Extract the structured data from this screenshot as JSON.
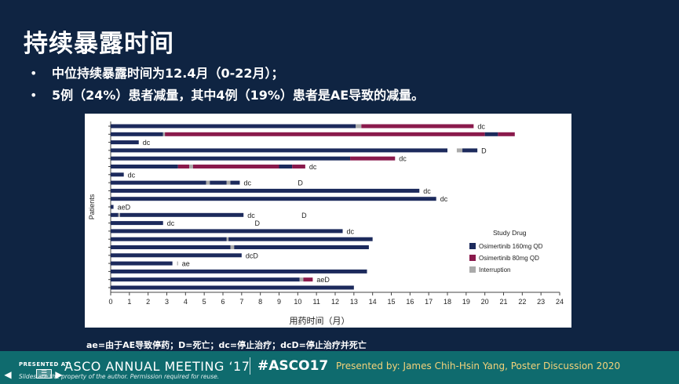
{
  "slide": {
    "title": "持续暴露时间",
    "bullets": [
      "中位持续暴露时间为12.4月（0-22月）；",
      "5例（24%）患者减量，其中4例（19%）患者是AE导致的减量。"
    ],
    "bullet_marker": "•",
    "footnote": "ae=由于AE导致停药；D=死亡；dc=停止治疗；dcD=停止治疗并死亡"
  },
  "colors": {
    "background": "#0f2442",
    "footer": "#0f6b6e",
    "osimertinib_160": "#1c2a5c",
    "osimertinib_80": "#8a1a4c",
    "interruption": "#aaaaaa",
    "presenter_text": "#f3d27a"
  },
  "chart_data": {
    "type": "bar",
    "orientation": "horizontal",
    "xlabel": "用药时间（月）",
    "ylabel": "Patients",
    "xlim": [
      0,
      24
    ],
    "xticks": [
      0,
      1,
      2,
      3,
      4,
      5,
      6,
      7,
      8,
      9,
      10,
      11,
      12,
      13,
      14,
      15,
      16,
      17,
      18,
      19,
      20,
      21,
      22,
      23,
      24
    ],
    "legend": {
      "title": "Study Drug",
      "placement": "right",
      "entries": [
        {
          "label": "Osimertinib 160mg QD",
          "color_key": "osimertinib_160"
        },
        {
          "label": "Osimertinib 80mg QD",
          "color_key": "osimertinib_80"
        },
        {
          "label": "Interruption",
          "color_key": "interruption"
        }
      ]
    },
    "patients": [
      {
        "segments": [
          {
            "start": 0,
            "end": 13.1,
            "drug": "160"
          },
          {
            "start": 13.1,
            "end": 13.4,
            "drug": "int"
          },
          {
            "start": 13.4,
            "end": 19.4,
            "drug": "80"
          }
        ],
        "label": "dc",
        "extra": []
      },
      {
        "segments": [
          {
            "start": 0,
            "end": 2.8,
            "drug": "160"
          },
          {
            "start": 2.8,
            "end": 2.9,
            "drug": "int"
          },
          {
            "start": 2.9,
            "end": 20.0,
            "drug": "80"
          },
          {
            "start": 20.0,
            "end": 20.7,
            "drug": "160"
          },
          {
            "start": 20.7,
            "end": 21.6,
            "drug": "80"
          }
        ],
        "label": "",
        "extra": []
      },
      {
        "segments": [
          {
            "start": 0,
            "end": 1.5,
            "drug": "160"
          }
        ],
        "label": "dc",
        "extra": []
      },
      {
        "segments": [
          {
            "start": 0,
            "end": 18.0,
            "drug": "160"
          },
          {
            "start": 18.5,
            "end": 18.8,
            "drug": "int"
          },
          {
            "start": 18.8,
            "end": 19.6,
            "drug": "160"
          }
        ],
        "label": "D",
        "extra": []
      },
      {
        "segments": [
          {
            "start": 0,
            "end": 12.8,
            "drug": "160"
          },
          {
            "start": 12.8,
            "end": 15.2,
            "drug": "80"
          }
        ],
        "label": "dc",
        "extra": []
      },
      {
        "segments": [
          {
            "start": 0,
            "end": 3.6,
            "drug": "160"
          },
          {
            "start": 3.6,
            "end": 4.2,
            "drug": "80"
          },
          {
            "start": 4.2,
            "end": 4.4,
            "drug": "int"
          },
          {
            "start": 4.4,
            "end": 9.0,
            "drug": "80"
          },
          {
            "start": 9.0,
            "end": 9.7,
            "drug": "160"
          },
          {
            "start": 9.7,
            "end": 10.4,
            "drug": "80"
          }
        ],
        "label": "dc",
        "extra": []
      },
      {
        "segments": [
          {
            "start": 0,
            "end": 0.7,
            "drug": "160"
          }
        ],
        "label": "dc",
        "extra": []
      },
      {
        "segments": [
          {
            "start": 0,
            "end": 5.1,
            "drug": "160"
          },
          {
            "start": 5.1,
            "end": 5.3,
            "drug": "int"
          },
          {
            "start": 5.3,
            "end": 6.2,
            "drug": "160"
          },
          {
            "start": 6.2,
            "end": 6.4,
            "drug": "int"
          },
          {
            "start": 6.4,
            "end": 6.9,
            "drug": "160"
          }
        ],
        "label": "dc",
        "extra": [
          {
            "x": 10.0,
            "text": "D"
          }
        ]
      },
      {
        "segments": [
          {
            "start": 0,
            "end": 16.5,
            "drug": "160"
          }
        ],
        "label": "dc",
        "extra": []
      },
      {
        "segments": [
          {
            "start": 0,
            "end": 17.4,
            "drug": "160"
          }
        ],
        "label": "dc",
        "extra": []
      },
      {
        "segments": [
          {
            "start": 0,
            "end": 0.15,
            "drug": "160"
          }
        ],
        "label": "aeD",
        "extra": []
      },
      {
        "segments": [
          {
            "start": 0,
            "end": 0.4,
            "drug": "160"
          },
          {
            "start": 0.4,
            "end": 0.5,
            "drug": "int"
          },
          {
            "start": 0.5,
            "end": 7.1,
            "drug": "160"
          }
        ],
        "label": "dc",
        "extra": [
          {
            "x": 10.2,
            "text": "D"
          }
        ]
      },
      {
        "segments": [
          {
            "start": 0,
            "end": 2.8,
            "drug": "160"
          }
        ],
        "label": "dc",
        "extra": [
          {
            "x": 7.7,
            "text": "D"
          }
        ]
      },
      {
        "segments": [
          {
            "start": 0,
            "end": 12.4,
            "drug": "160"
          }
        ],
        "label": "dc",
        "extra": []
      },
      {
        "segments": [
          {
            "start": 0,
            "end": 6.2,
            "drug": "160"
          },
          {
            "start": 6.2,
            "end": 6.3,
            "drug": "int"
          },
          {
            "start": 6.3,
            "end": 14.0,
            "drug": "160"
          }
        ],
        "label": "",
        "extra": []
      },
      {
        "segments": [
          {
            "start": 0,
            "end": 6.4,
            "drug": "160"
          },
          {
            "start": 6.4,
            "end": 6.6,
            "drug": "int"
          },
          {
            "start": 6.6,
            "end": 13.8,
            "drug": "160"
          }
        ],
        "label": "",
        "extra": []
      },
      {
        "segments": [
          {
            "start": 0,
            "end": 7.0,
            "drug": "160"
          }
        ],
        "label": "dcD",
        "extra": []
      },
      {
        "segments": [
          {
            "start": 0,
            "end": 3.3,
            "drug": "160"
          },
          {
            "start": 3.55,
            "end": 3.6,
            "drug": "int"
          }
        ],
        "label": "ae",
        "extra": []
      },
      {
        "segments": [
          {
            "start": 0,
            "end": 13.7,
            "drug": "160"
          }
        ],
        "label": "",
        "extra": []
      },
      {
        "segments": [
          {
            "start": 0,
            "end": 10.1,
            "drug": "160"
          },
          {
            "start": 10.1,
            "end": 10.3,
            "drug": "int"
          },
          {
            "start": 10.3,
            "end": 10.8,
            "drug": "80"
          }
        ],
        "label": "aeD",
        "extra": []
      },
      {
        "segments": [
          {
            "start": 0,
            "end": 13.0,
            "drug": "160"
          }
        ],
        "label": "",
        "extra": []
      }
    ]
  },
  "footer": {
    "presented_at": "PRESENTED AT:",
    "meeting": "ASCO ANNUAL MEETING ‘17",
    "hashtag": "#ASCO17",
    "presenter": "Presented by: James Chih-Hsin Yang, Poster Discussion 2020",
    "rights": "Slides are the property of the author. Permission required for reuse."
  },
  "nav": {
    "prev_icon": "arrow-left-icon",
    "menu_icon": "menu-icon",
    "next_icon": "arrow-right-icon"
  }
}
